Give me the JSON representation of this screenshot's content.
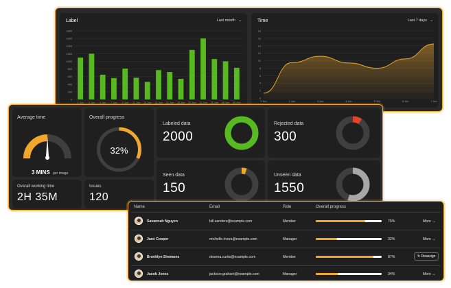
{
  "top_panel": {
    "label_chart": {
      "title": "Label",
      "filter": "Last month"
    },
    "time_chart": {
      "title": "Time",
      "filter": "Last 7 days"
    }
  },
  "chart_data": [
    {
      "type": "bar",
      "title": "Label",
      "categories": [
        "1 Jun",
        "3 Jun",
        "5 Jun",
        "7 Jun",
        "9 Jun",
        "11 Jun",
        "13 Jun",
        "15 Jun",
        "16 Jun",
        "18 Jun",
        "20 Jun",
        "24 Jun",
        "26 Jun",
        "28 Jun",
        "30 Jun"
      ],
      "values": [
        1100,
        1200,
        650,
        560,
        810,
        570,
        460,
        770,
        720,
        540,
        1300,
        1600,
        1060,
        1000,
        830
      ],
      "color": "#58b81f",
      "ylim": [
        0,
        1800
      ],
      "yticks": [
        0,
        200,
        400,
        600,
        800,
        1000,
        1200,
        1400,
        1600,
        1800
      ],
      "grid": true
    },
    {
      "type": "area",
      "title": "Time",
      "x": [
        "1 Jun",
        "2 Jun",
        "3 Jun",
        "4 Jun",
        "5 Jun",
        "6 Jun",
        "7 Jun"
      ],
      "values": [
        1.3,
        9.5,
        11.2,
        9.4,
        8,
        10.5,
        14.5
      ],
      "color": "#f0a72c",
      "ylim": [
        0,
        18
      ],
      "yticks": [
        0,
        2,
        4,
        6,
        8,
        10,
        12,
        14,
        16,
        18
      ],
      "grid": true
    }
  ],
  "stats": {
    "average_time": {
      "label": "Average time",
      "value": "3 MINS",
      "unit": "per image",
      "gauge_fraction": 0.5
    },
    "overall_progress": {
      "label": "Overall progress",
      "value": "32%",
      "fraction": 0.32
    },
    "overall_working_time": {
      "label": "Overall working time",
      "value": "2H 35M"
    },
    "issues": {
      "label": "Issues",
      "value": "120"
    },
    "labeled": {
      "label": "Labeled data",
      "value": "2000",
      "fraction": 1.0,
      "color": "#58b81f"
    },
    "rejected": {
      "label": "Rejected data",
      "value": "300",
      "fraction": 0.09,
      "color": "#e0452b"
    },
    "seen": {
      "label": "Seen data",
      "value": "150",
      "fraction": 0.05,
      "color": "#f0a72c"
    },
    "unseen": {
      "label": "Unseen data",
      "value": "1550",
      "fraction": 0.55,
      "color": "#a7a7a7"
    }
  },
  "table": {
    "headers": {
      "name": "Name",
      "email": "Email",
      "role": "Role",
      "progress": "Overall progress"
    },
    "rows": [
      {
        "name": "Savannah Nguyen",
        "email": "bill.sanders@example.com",
        "role": "Member",
        "progress": 0.75,
        "progress_label": "75%",
        "action": "More",
        "action_icon": "arrow-right-icon"
      },
      {
        "name": "Jane Cooper",
        "email": "michelle.rivera@example.com",
        "role": "Manager",
        "progress": 0.32,
        "progress_label": "32%",
        "action": "More",
        "action_icon": "arrow-right-icon"
      },
      {
        "name": "Brooklyn Simmons",
        "email": "deanna.curtis@example.com",
        "role": "Member",
        "progress": 0.87,
        "progress_label": "87%",
        "action": "Reassign",
        "action_icon": "refresh-icon"
      },
      {
        "name": "Jacob Jones",
        "email": "jackson.graham@example.com",
        "role": "Manager",
        "progress": 0.34,
        "progress_label": "34%",
        "action": "More",
        "action_icon": "arrow-right-icon"
      }
    ]
  }
}
